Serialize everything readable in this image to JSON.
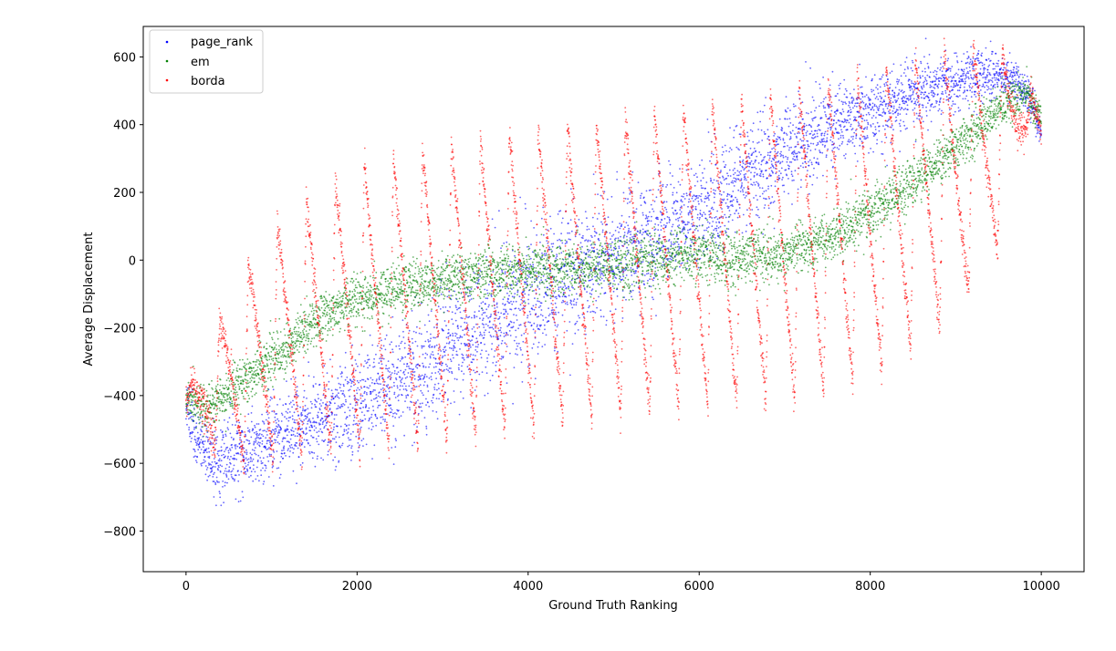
{
  "chart_data": {
    "type": "scatter",
    "title": "",
    "xlabel": "Ground Truth Ranking",
    "ylabel": "Average Displacement",
    "xlim": [
      -500,
      10500
    ],
    "ylim": [
      -920,
      690
    ],
    "x_ticks": [
      0,
      2000,
      4000,
      6000,
      8000,
      10000
    ],
    "x_tick_labels": [
      "0",
      "2000",
      "4000",
      "6000",
      "8000",
      "10000"
    ],
    "y_ticks": [
      -800,
      -600,
      -400,
      -200,
      0,
      200,
      400,
      600
    ],
    "y_tick_labels": [
      "−800",
      "−600",
      "−400",
      "−200",
      "0",
      "200",
      "400",
      "600"
    ],
    "grid": false,
    "legend_position": "top-left",
    "series": [
      {
        "name": "page_rank",
        "color": "#0000ff",
        "trend": [
          [
            0,
            -420
          ],
          [
            100,
            -520
          ],
          [
            300,
            -590
          ],
          [
            600,
            -580
          ],
          [
            1000,
            -530
          ],
          [
            1500,
            -480
          ],
          [
            2000,
            -420
          ],
          [
            2500,
            -360
          ],
          [
            3000,
            -280
          ],
          [
            3500,
            -190
          ],
          [
            4000,
            -110
          ],
          [
            4500,
            -40
          ],
          [
            5000,
            20
          ],
          [
            5500,
            70
          ],
          [
            6000,
            140
          ],
          [
            6500,
            230
          ],
          [
            7000,
            320
          ],
          [
            7500,
            390
          ],
          [
            8000,
            440
          ],
          [
            8500,
            490
          ],
          [
            9000,
            530
          ],
          [
            9400,
            550
          ],
          [
            9700,
            530
          ],
          [
            9900,
            460
          ],
          [
            10000,
            380
          ]
        ],
        "spread": [
          [
            0,
            45
          ],
          [
            500,
            55
          ],
          [
            1000,
            55
          ],
          [
            2000,
            75
          ],
          [
            3000,
            90
          ],
          [
            4000,
            100
          ],
          [
            5000,
            90
          ],
          [
            6000,
            80
          ],
          [
            7000,
            70
          ],
          [
            8000,
            55
          ],
          [
            9000,
            40
          ],
          [
            9800,
            30
          ],
          [
            10000,
            20
          ]
        ]
      },
      {
        "name": "em",
        "color": "#008000",
        "trend": [
          [
            0,
            -400
          ],
          [
            200,
            -440
          ],
          [
            500,
            -390
          ],
          [
            1000,
            -290
          ],
          [
            1500,
            -180
          ],
          [
            2000,
            -120
          ],
          [
            2500,
            -80
          ],
          [
            3000,
            -60
          ],
          [
            3500,
            -40
          ],
          [
            4000,
            -30
          ],
          [
            4500,
            -20
          ],
          [
            5000,
            -10
          ],
          [
            5500,
            0
          ],
          [
            6000,
            10
          ],
          [
            6500,
            10
          ],
          [
            7000,
            20
          ],
          [
            7500,
            60
          ],
          [
            8000,
            140
          ],
          [
            8500,
            230
          ],
          [
            9000,
            330
          ],
          [
            9500,
            450
          ],
          [
            9800,
            500
          ],
          [
            10000,
            420
          ]
        ],
        "spread": [
          [
            0,
            30
          ],
          [
            1000,
            35
          ],
          [
            2000,
            35
          ],
          [
            4000,
            40
          ],
          [
            6000,
            40
          ],
          [
            8000,
            35
          ],
          [
            9000,
            35
          ],
          [
            10000,
            25
          ]
        ]
      },
      {
        "name": "borda",
        "color": "#ff0000",
        "period": 339,
        "rise_fraction": 0.15,
        "envelope_low": [
          [
            0,
            -440
          ],
          [
            200,
            -510
          ],
          [
            500,
            -620
          ],
          [
            1000,
            -600
          ],
          [
            2000,
            -560
          ],
          [
            3000,
            -540
          ],
          [
            4000,
            -500
          ],
          [
            5000,
            -460
          ],
          [
            6000,
            -440
          ],
          [
            7000,
            -420
          ],
          [
            8000,
            -360
          ],
          [
            9000,
            -160
          ],
          [
            9500,
            40
          ],
          [
            9800,
            380
          ],
          [
            10000,
            380
          ]
        ],
        "envelope_high": [
          [
            0,
            -380
          ],
          [
            200,
            -330
          ],
          [
            500,
            -100
          ],
          [
            1000,
            100
          ],
          [
            2000,
            280
          ],
          [
            3000,
            340
          ],
          [
            4000,
            380
          ],
          [
            5000,
            420
          ],
          [
            6000,
            460
          ],
          [
            7000,
            500
          ],
          [
            8000,
            560
          ],
          [
            9000,
            620
          ],
          [
            9500,
            640
          ],
          [
            9800,
            560
          ],
          [
            10000,
            400
          ]
        ]
      }
    ]
  }
}
